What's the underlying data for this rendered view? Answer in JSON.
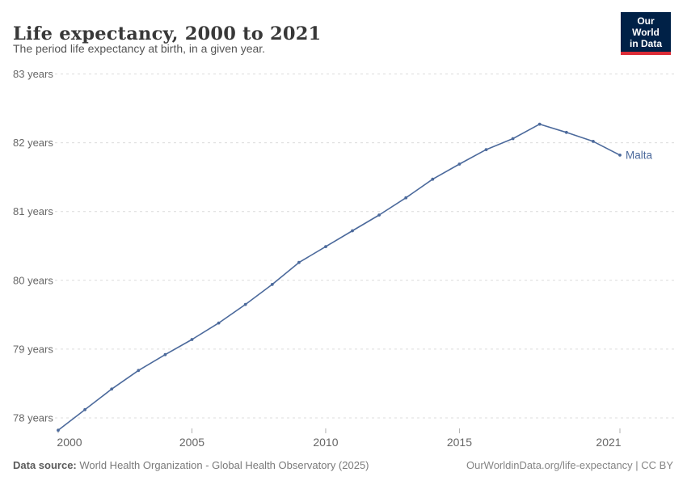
{
  "header": {
    "title": "Life expectancy, 2000 to 2021",
    "subtitle": "The period life expectancy at birth, in a given year.",
    "logo_line1": "Our World",
    "logo_line2": "in Data"
  },
  "footer": {
    "source_label": "Data source:",
    "source_rest": " World Health Organization - Global Health Observatory (2025)",
    "right_text": "OurWorldinData.org/life-expectancy | CC BY"
  },
  "colors": {
    "series": "#4C6A9C",
    "grid": "#dcdcdc",
    "tick": "#b0b0b0",
    "axis_text": "#666666",
    "logo_bg": "#002147",
    "logo_accent": "#dc2c37"
  },
  "chart_data": {
    "type": "line",
    "title": "Life expectancy, 2000 to 2021",
    "subtitle": "The period life expectancy at birth, in a given year.",
    "xlabel": "",
    "ylabel": "years",
    "xlim": [
      2000,
      2021
    ],
    "ylim": [
      78,
      83
    ],
    "grid": "horizontal-dashed",
    "legend": "end-of-line-label",
    "x": [
      2000,
      2001,
      2002,
      2003,
      2004,
      2005,
      2006,
      2007,
      2008,
      2009,
      2010,
      2011,
      2012,
      2013,
      2014,
      2015,
      2016,
      2017,
      2018,
      2019,
      2020,
      2021
    ],
    "series": [
      {
        "name": "Malta",
        "values": [
          77.82,
          78.12,
          78.42,
          78.69,
          78.92,
          79.14,
          79.38,
          79.65,
          79.94,
          80.26,
          80.49,
          80.72,
          80.95,
          81.2,
          81.47,
          81.69,
          81.9,
          82.06,
          82.27,
          82.15,
          82.02,
          81.82
        ]
      }
    ],
    "y_ticks": [
      {
        "value": 78,
        "label": "78 years"
      },
      {
        "value": 79,
        "label": "79 years"
      },
      {
        "value": 80,
        "label": "80 years"
      },
      {
        "value": 81,
        "label": "81 years"
      },
      {
        "value": 82,
        "label": "82 years"
      },
      {
        "value": 83,
        "label": "83 years"
      }
    ],
    "x_ticks": [
      {
        "value": 2000,
        "label": "2000",
        "label_dx": 14
      },
      {
        "value": 2005,
        "label": "2005",
        "label_dx": 0
      },
      {
        "value": 2010,
        "label": "2010",
        "label_dx": 0
      },
      {
        "value": 2015,
        "label": "2015",
        "label_dx": 0
      },
      {
        "value": 2021,
        "label": "2021",
        "label_dx": -14
      }
    ]
  }
}
